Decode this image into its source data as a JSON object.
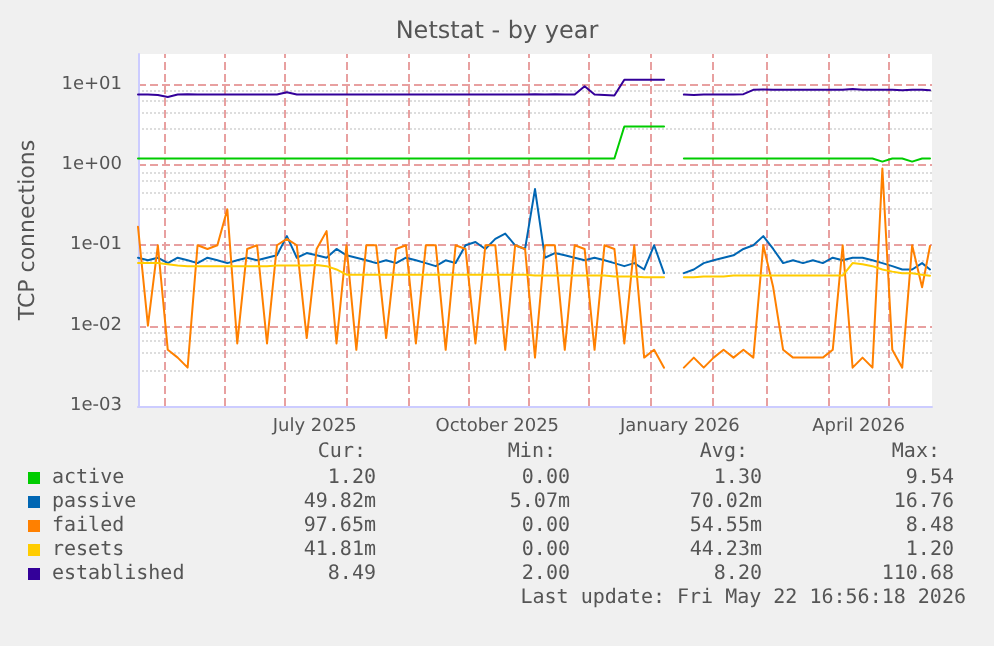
{
  "chart_data": {
    "type": "line",
    "title": "Netstat - by year",
    "ylabel": "TCP connections",
    "log": "y",
    "grid": true,
    "legend": "bottom",
    "marker": "none",
    "line_style": "solid",
    "xlim": [
      "2025-04-18",
      "2026-05-23"
    ],
    "xticks": [
      {
        "value": "2025-05-01",
        "label": null
      },
      {
        "value": "2025-06-01",
        "label": null
      },
      {
        "value": "2025-07-01",
        "label": null
      },
      {
        "value": "2025-08-01",
        "label": null
      },
      {
        "value": "2025-09-01",
        "label": null
      },
      {
        "value": "2025-10-01",
        "label": null
      },
      {
        "value": "2025-11-01",
        "label": null
      },
      {
        "value": "2025-12-01",
        "label": null
      },
      {
        "value": "2026-01-01",
        "label": null
      },
      {
        "value": "2026-02-01",
        "label": null
      },
      {
        "value": "2026-03-01",
        "label": null
      },
      {
        "value": "2026-04-01",
        "label": null
      },
      {
        "value": "2026-05-01",
        "label": null
      },
      {
        "value": "2025-07-16",
        "label": "July 2025"
      },
      {
        "value": "2025-10-16",
        "label": "October 2025"
      },
      {
        "value": "2026-01-16",
        "label": "January 2026"
      },
      {
        "value": "2026-04-16",
        "label": "April 2026"
      }
    ],
    "ylim": [
      0.001,
      24
    ],
    "yticks": [
      {
        "value": 0.001,
        "label": "1e-03"
      },
      {
        "value": 0.01,
        "label": "1e-02"
      },
      {
        "value": 0.1,
        "label": "1e-01"
      },
      {
        "value": 1,
        "label": "1e+00"
      },
      {
        "value": 10,
        "label": "1e+01"
      }
    ],
    "x": [
      "2025-04-18",
      "2025-04-23",
      "2025-04-28",
      "2025-05-03",
      "2025-05-08",
      "2025-05-13",
      "2025-05-18",
      "2025-05-23",
      "2025-05-28",
      "2025-06-02",
      "2025-06-07",
      "2025-06-12",
      "2025-06-17",
      "2025-06-22",
      "2025-06-27",
      "2025-07-02",
      "2025-07-07",
      "2025-07-12",
      "2025-07-17",
      "2025-07-22",
      "2025-07-27",
      "2025-08-01",
      "2025-08-06",
      "2025-08-11",
      "2025-08-16",
      "2025-08-21",
      "2025-08-26",
      "2025-08-31",
      "2025-09-05",
      "2025-09-10",
      "2025-09-15",
      "2025-09-20",
      "2025-09-25",
      "2025-09-30",
      "2025-10-05",
      "2025-10-10",
      "2025-10-15",
      "2025-10-20",
      "2025-10-25",
      "2025-10-30",
      "2025-11-04",
      "2025-11-09",
      "2025-11-14",
      "2025-11-19",
      "2025-11-24",
      "2025-11-29",
      "2025-12-04",
      "2025-12-09",
      "2025-12-14",
      "2025-12-19",
      "2025-12-24",
      "2025-12-29",
      "2026-01-03",
      "2026-01-08",
      "2026-01-13",
      "2026-01-18",
      "2026-01-23",
      "2026-01-28",
      "2026-02-02",
      "2026-02-07",
      "2026-02-12",
      "2026-02-17",
      "2026-02-22",
      "2026-02-27",
      "2026-03-04",
      "2026-03-09",
      "2026-03-14",
      "2026-03-19",
      "2026-03-24",
      "2026-03-29",
      "2026-04-03",
      "2026-04-08",
      "2026-04-13",
      "2026-04-18",
      "2026-04-23",
      "2026-04-28",
      "2026-05-03",
      "2026-05-08",
      "2026-05-13",
      "2026-05-18",
      "2026-05-22"
    ],
    "series": [
      {
        "name": "active",
        "color": "#00cc00",
        "values": [
          1.2,
          1.2,
          1.2,
          1.2,
          1.2,
          1.2,
          1.2,
          1.2,
          1.2,
          1.2,
          1.2,
          1.2,
          1.2,
          1.2,
          1.2,
          1.2,
          1.2,
          1.2,
          1.2,
          1.2,
          1.2,
          1.2,
          1.2,
          1.2,
          1.2,
          1.2,
          1.2,
          1.2,
          1.2,
          1.2,
          1.2,
          1.2,
          1.2,
          1.2,
          1.2,
          1.2,
          1.2,
          1.2,
          1.2,
          1.2,
          1.2,
          1.2,
          1.2,
          1.2,
          1.2,
          1.2,
          1.2,
          1.2,
          1.2,
          3.0,
          3.0,
          3.0,
          3.0,
          3.0,
          null,
          1.2,
          1.2,
          1.2,
          1.2,
          1.2,
          1.2,
          1.2,
          1.2,
          1.2,
          1.2,
          1.2,
          1.2,
          1.2,
          1.2,
          1.2,
          1.2,
          1.2,
          1.2,
          1.2,
          1.2,
          1.1,
          1.2,
          1.2,
          1.1,
          1.2,
          1.2
        ]
      },
      {
        "name": "passive",
        "color": "#0066b3",
        "values": [
          0.07,
          0.065,
          0.07,
          0.06,
          0.07,
          0.065,
          0.06,
          0.07,
          0.065,
          0.06,
          0.065,
          0.07,
          0.065,
          0.07,
          0.075,
          0.13,
          0.07,
          0.08,
          0.075,
          0.07,
          0.09,
          0.075,
          0.07,
          0.065,
          0.06,
          0.065,
          0.06,
          0.07,
          0.065,
          0.06,
          0.055,
          0.065,
          0.06,
          0.1,
          0.11,
          0.09,
          0.12,
          0.14,
          0.1,
          0.09,
          0.5,
          0.07,
          0.08,
          0.075,
          0.07,
          0.065,
          0.07,
          0.065,
          0.06,
          0.055,
          0.06,
          0.05,
          0.1,
          0.045,
          null,
          0.045,
          0.05,
          0.06,
          0.065,
          0.07,
          0.075,
          0.09,
          0.1,
          0.13,
          0.09,
          0.06,
          0.065,
          0.06,
          0.065,
          0.06,
          0.07,
          0.065,
          0.07,
          0.07,
          0.065,
          0.06,
          0.055,
          0.05,
          0.05,
          0.06,
          0.05
        ]
      },
      {
        "name": "failed",
        "color": "#ff8000",
        "values": [
          0.17,
          0.01,
          0.1,
          0.005,
          0.004,
          0.003,
          0.1,
          0.09,
          0.1,
          0.28,
          0.006,
          0.09,
          0.1,
          0.006,
          0.1,
          0.12,
          0.1,
          0.007,
          0.09,
          0.15,
          0.006,
          0.1,
          0.005,
          0.1,
          0.1,
          0.007,
          0.09,
          0.1,
          0.006,
          0.1,
          0.1,
          0.005,
          0.1,
          0.09,
          0.006,
          0.1,
          0.1,
          0.005,
          0.1,
          0.09,
          0.004,
          0.1,
          0.1,
          0.005,
          0.1,
          0.09,
          0.005,
          0.1,
          0.09,
          0.006,
          0.1,
          0.004,
          0.005,
          0.003,
          null,
          0.003,
          0.004,
          0.003,
          0.004,
          0.005,
          0.004,
          0.005,
          0.004,
          0.1,
          0.03,
          0.005,
          0.004,
          0.004,
          0.004,
          0.004,
          0.005,
          0.1,
          0.003,
          0.004,
          0.003,
          0.9,
          0.005,
          0.003,
          0.1,
          0.03,
          0.098
        ]
      },
      {
        "name": "resets",
        "color": "#ffcc00",
        "values": [
          0.06,
          0.06,
          0.06,
          0.058,
          0.056,
          0.055,
          0.055,
          0.055,
          0.055,
          0.055,
          0.055,
          0.055,
          0.055,
          0.055,
          0.056,
          0.056,
          0.056,
          0.056,
          0.057,
          0.055,
          0.05,
          0.043,
          0.043,
          0.043,
          0.043,
          0.043,
          0.043,
          0.043,
          0.043,
          0.043,
          0.043,
          0.043,
          0.043,
          0.043,
          0.043,
          0.043,
          0.043,
          0.043,
          0.043,
          0.043,
          0.042,
          0.042,
          0.042,
          0.042,
          0.042,
          0.042,
          0.042,
          0.042,
          0.041,
          0.041,
          0.041,
          0.04,
          0.04,
          0.04,
          null,
          0.04,
          0.04,
          0.041,
          0.041,
          0.041,
          0.042,
          0.042,
          0.042,
          0.042,
          0.042,
          0.042,
          0.042,
          0.042,
          0.042,
          0.042,
          0.042,
          0.042,
          0.06,
          0.058,
          0.055,
          0.05,
          0.047,
          0.045,
          0.045,
          0.043,
          0.0418
        ]
      },
      {
        "name": "established",
        "color": "#330099",
        "values": [
          7.5,
          7.5,
          7.4,
          7.0,
          7.5,
          7.6,
          7.5,
          7.5,
          7.5,
          7.5,
          7.5,
          7.5,
          7.5,
          7.5,
          7.5,
          8.0,
          7.5,
          7.5,
          7.5,
          7.5,
          7.5,
          7.5,
          7.5,
          7.5,
          7.5,
          7.5,
          7.5,
          7.5,
          7.5,
          7.5,
          7.5,
          7.5,
          7.5,
          7.5,
          7.5,
          7.5,
          7.5,
          7.5,
          7.5,
          7.5,
          7.6,
          7.5,
          7.6,
          7.5,
          7.5,
          9.5,
          7.5,
          7.4,
          7.3,
          11.5,
          11.5,
          11.5,
          11.5,
          11.5,
          null,
          7.5,
          7.4,
          7.5,
          7.5,
          7.5,
          7.5,
          7.6,
          8.6,
          8.7,
          8.6,
          8.6,
          8.6,
          8.6,
          8.6,
          8.6,
          8.6,
          8.6,
          8.8,
          8.6,
          8.6,
          8.6,
          8.6,
          8.5,
          8.6,
          8.6,
          8.49
        ]
      }
    ],
    "annotations": [
      "Cur:",
      "Min:",
      "Avg:",
      "Max:",
      "1.20",
      "0.00",
      "1.30",
      "9.54",
      "49.82m",
      "5.07m",
      "70.02m",
      "16.76",
      "97.65m",
      "0.00",
      "54.55m",
      "8.48",
      "41.81m",
      "0.00",
      "44.23m",
      "1.20",
      "8.49",
      "2.00",
      "8.20",
      "110.68",
      "Last update: Fri May 22 16:56:18 2026"
    ]
  }
}
